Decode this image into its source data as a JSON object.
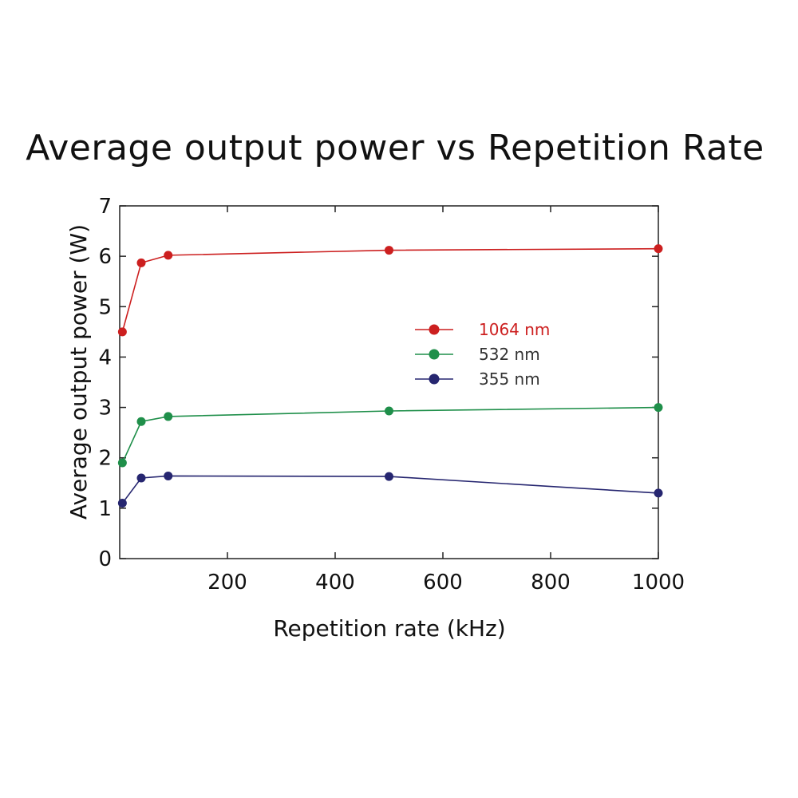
{
  "chart_data": {
    "type": "line",
    "title": "Average output power vs Repetition Rate",
    "xlabel": "Repetition rate (kHz)",
    "ylabel": "Average output power (W)",
    "xlim": [
      0,
      1000
    ],
    "ylim": [
      0,
      7
    ],
    "x_ticks": [
      200,
      400,
      600,
      800,
      1000
    ],
    "y_ticks": [
      0,
      1,
      2,
      3,
      4,
      5,
      6,
      7
    ],
    "grid": false,
    "legend_position": "center-right",
    "series": [
      {
        "name": "1064 nm",
        "color": "#cc1f1f",
        "points": [
          [
            5,
            4.5
          ],
          [
            40,
            5.87
          ],
          [
            90,
            6.02
          ],
          [
            500,
            6.12
          ],
          [
            1000,
            6.15
          ]
        ]
      },
      {
        "name": "532 nm",
        "color": "#1f8f4a",
        "points": [
          [
            5,
            1.9
          ],
          [
            40,
            2.72
          ],
          [
            90,
            2.82
          ],
          [
            500,
            2.93
          ],
          [
            1000,
            3.0
          ]
        ]
      },
      {
        "name": "355 nm",
        "color": "#262670",
        "points": [
          [
            5,
            1.1
          ],
          [
            40,
            1.6
          ],
          [
            90,
            1.64
          ],
          [
            500,
            1.63
          ],
          [
            1000,
            1.3
          ]
        ]
      }
    ]
  }
}
